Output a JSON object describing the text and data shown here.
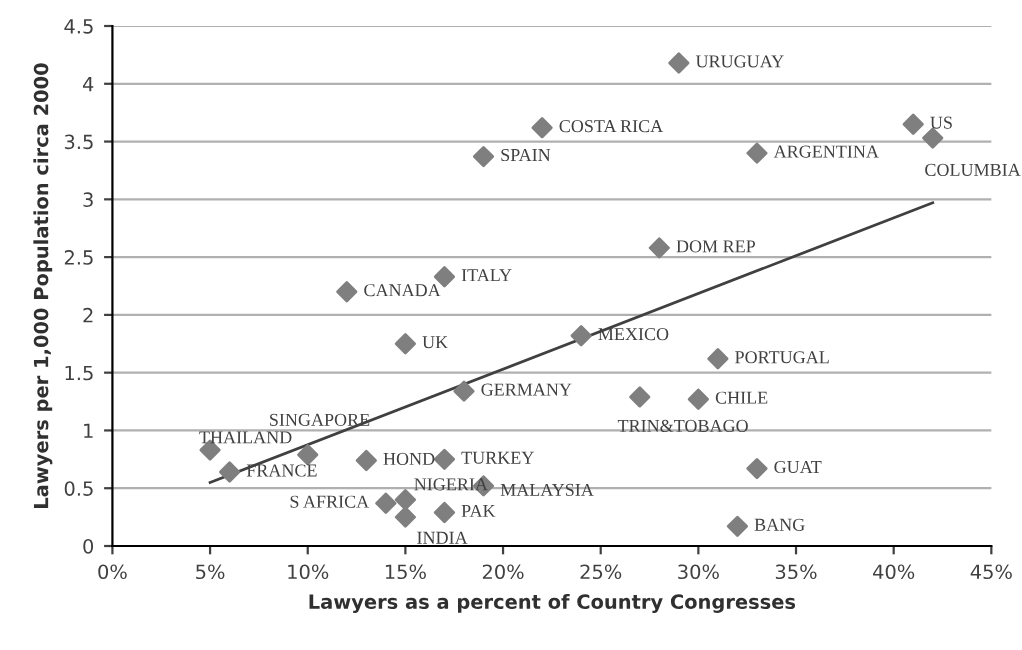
{
  "chart_data": {
    "type": "scatter",
    "xlabel": "Lawyers as a percent of Country Congresses",
    "ylabel": "Lawyers per 1,000 Population circa 2000",
    "xlim": [
      0,
      45
    ],
    "xticks": [
      {
        "value": 0,
        "label": "0%"
      },
      {
        "value": 5,
        "label": "5%"
      },
      {
        "value": 10,
        "label": "10%"
      },
      {
        "value": 15,
        "label": "15%"
      },
      {
        "value": 20,
        "label": "20%"
      },
      {
        "value": 25,
        "label": "25%"
      },
      {
        "value": 30,
        "label": "30%"
      },
      {
        "value": 35,
        "label": "35%"
      },
      {
        "value": 40,
        "label": "40%"
      },
      {
        "value": 45,
        "label": "45%"
      }
    ],
    "ylim": [
      0,
      4.5
    ],
    "yticks": [
      0,
      0.5,
      1,
      1.5,
      2,
      2.5,
      3,
      3.5,
      4,
      4.5
    ],
    "grid": "y",
    "series": [
      {
        "marker": "diamond",
        "color": "#7f7f7f",
        "x": [
          29,
          22,
          19,
          33,
          41,
          42,
          17,
          12,
          28,
          15,
          24,
          31,
          18,
          27,
          30,
          10,
          5,
          6,
          13,
          17,
          19,
          15,
          14,
          15,
          17,
          33,
          32
        ],
        "values": [
          4.18,
          3.62,
          3.37,
          3.4,
          3.65,
          3.53,
          2.33,
          2.2,
          2.58,
          1.75,
          1.82,
          1.62,
          1.34,
          1.29,
          1.27,
          0.79,
          0.83,
          0.64,
          0.74,
          0.75,
          0.52,
          0.4,
          0.37,
          0.25,
          0.29,
          0.67,
          0.17
        ]
      },
      {
        "type": "line",
        "color": "#404040",
        "x": [
          5,
          42
        ],
        "values": [
          0.55,
          2.97
        ]
      }
    ],
    "annotations": [
      {
        "text": "URUGUAY",
        "x": 29,
        "y": 4.18
      },
      {
        "text": "COSTA RICA",
        "x": 22,
        "y": 3.62
      },
      {
        "text": "SPAIN",
        "x": 19,
        "y": 3.37
      },
      {
        "text": "ARGENTINA",
        "x": 33,
        "y": 3.4
      },
      {
        "text": "US",
        "x": 41,
        "y": 3.65
      },
      {
        "text": "COLUMBIA",
        "x": 42,
        "y": 3.53
      },
      {
        "text": "ITALY",
        "x": 17,
        "y": 2.33
      },
      {
        "text": "CANADA",
        "x": 12,
        "y": 2.2
      },
      {
        "text": "DOM REP",
        "x": 28,
        "y": 2.58
      },
      {
        "text": "UK",
        "x": 15,
        "y": 1.75
      },
      {
        "text": "MEXICO",
        "x": 24,
        "y": 1.82
      },
      {
        "text": "PORTUGAL",
        "x": 31,
        "y": 1.62
      },
      {
        "text": "GERMANY",
        "x": 18,
        "y": 1.34
      },
      {
        "text": "TRIN&TOBAGO",
        "x": 27,
        "y": 1.29
      },
      {
        "text": "CHILE",
        "x": 30,
        "y": 1.27
      },
      {
        "text": "SINGAPORE",
        "x": 10,
        "y": 0.79
      },
      {
        "text": "THAILAND",
        "x": 5,
        "y": 0.83
      },
      {
        "text": "FRANCE",
        "x": 6,
        "y": 0.64
      },
      {
        "text": "HOND",
        "x": 13,
        "y": 0.74
      },
      {
        "text": "TURKEY",
        "x": 17,
        "y": 0.75
      },
      {
        "text": "MALAYSIA",
        "x": 19,
        "y": 0.52
      },
      {
        "text": "NIGERIA",
        "x": 15,
        "y": 0.4
      },
      {
        "text": "S AFRICA",
        "x": 14,
        "y": 0.37
      },
      {
        "text": "INDIA",
        "x": 15,
        "y": 0.25
      },
      {
        "text": "PAK",
        "x": 17,
        "y": 0.29
      },
      {
        "text": "GUAT",
        "x": 33,
        "y": 0.67
      },
      {
        "text": "BANG",
        "x": 32,
        "y": 0.17
      }
    ]
  }
}
